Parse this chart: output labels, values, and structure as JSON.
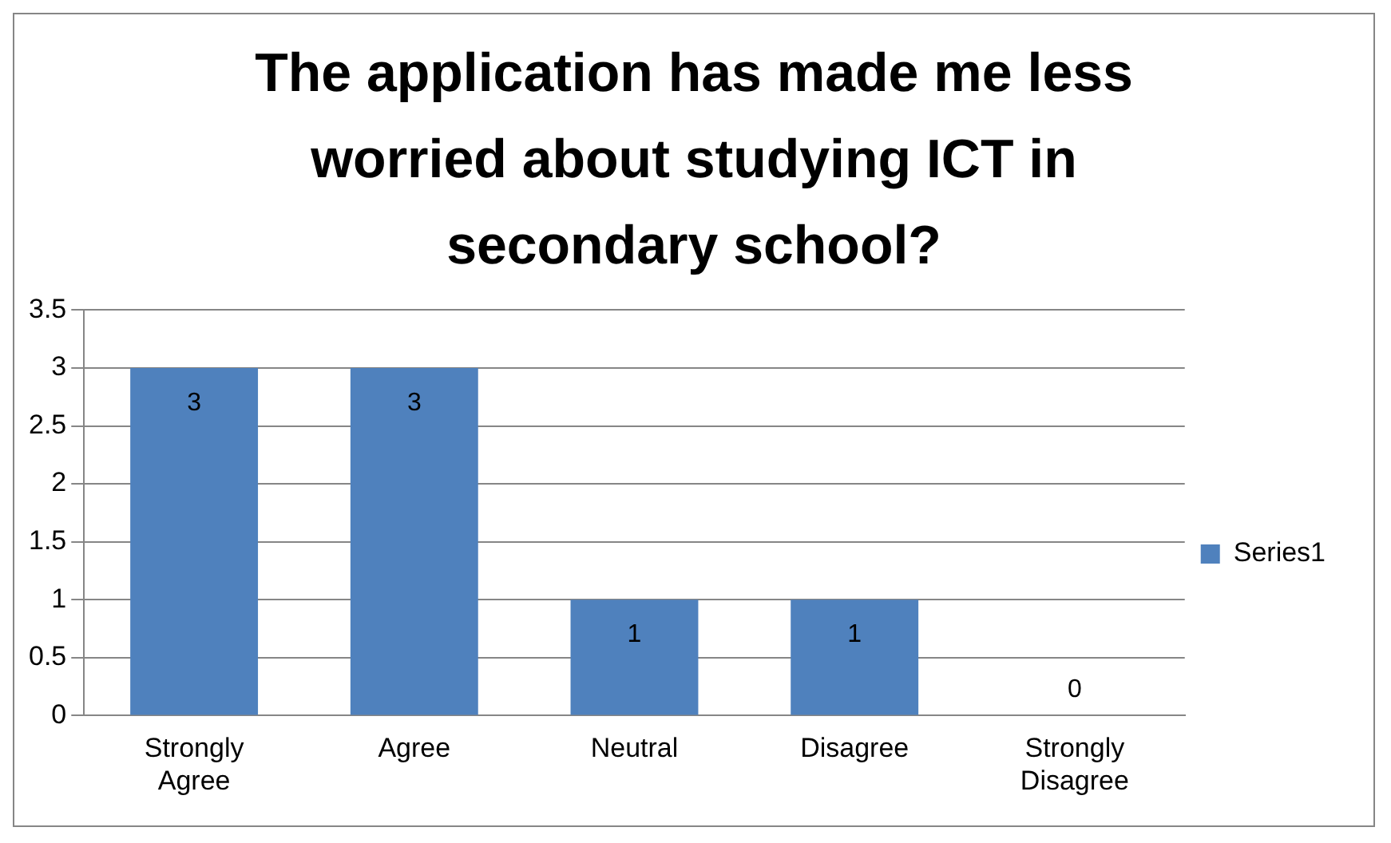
{
  "chart_data": {
    "type": "bar",
    "title": "The application has made me less worried about studying ICT in secondary school?",
    "categories": [
      "Strongly Agree",
      "Agree",
      "Neutral",
      "Disagree",
      "Strongly Disagree"
    ],
    "series": [
      {
        "name": "Series1",
        "color": "#4f81bd",
        "values": [
          3,
          3,
          1,
          1,
          0
        ]
      }
    ],
    "ylim": [
      0,
      3.5
    ],
    "yticks": [
      0,
      0.5,
      1,
      1.5,
      2,
      2.5,
      3,
      3.5
    ],
    "grid": "y",
    "legend": "right",
    "data_labels": true
  }
}
